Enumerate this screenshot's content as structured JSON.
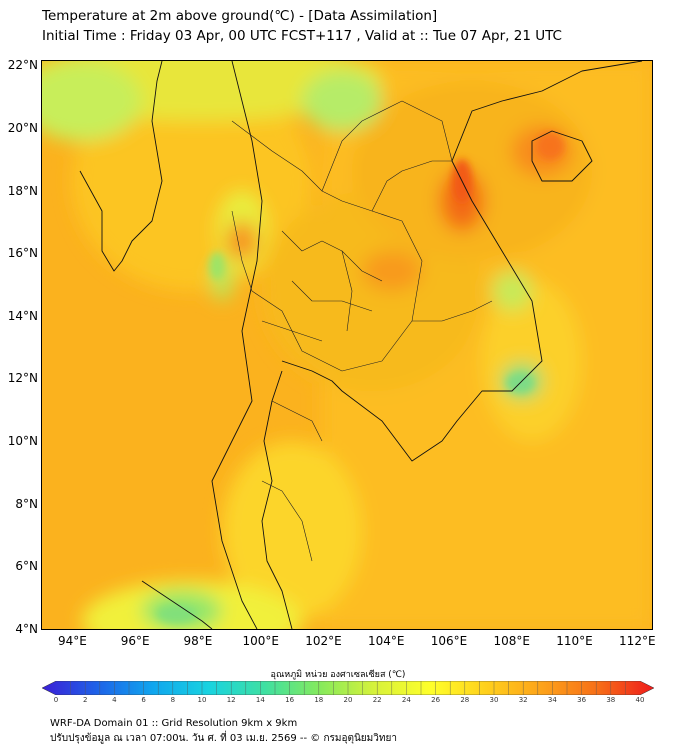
{
  "header": {
    "title": "Temperature at 2m above ground(℃) - [Data Assimilation]",
    "subtitle": "Initial Time : Friday 03 Apr, 00 UTC FCST+117 , Valid at :: Tue 07 Apr, 21 UTC"
  },
  "map": {
    "lat_ticks": [
      "22°N",
      "20°N",
      "18°N",
      "16°N",
      "14°N",
      "12°N",
      "10°N",
      "8°N",
      "6°N",
      "4°N"
    ],
    "lon_ticks": [
      "94°E",
      "96°E",
      "98°E",
      "100°E",
      "102°E",
      "104°E",
      "106°E",
      "108°E",
      "110°E",
      "112°E"
    ],
    "lat_range": [
      4,
      22.2
    ],
    "lon_range": [
      93,
      112.5
    ]
  },
  "colorbar": {
    "label": "อุณหภูมิ หน่วย องศาเซลเซียส (℃)",
    "ticks": [
      "0",
      "2",
      "4",
      "6",
      "8",
      "10",
      "12",
      "14",
      "16",
      "18",
      "20",
      "22",
      "24",
      "26",
      "28",
      "30",
      "32",
      "34",
      "36",
      "38",
      "40"
    ],
    "min": 0,
    "max": 40,
    "colors": [
      "#3b1fd6",
      "#1e63e8",
      "#10a6ee",
      "#19d3e0",
      "#3ee0a2",
      "#86ea5c",
      "#d8f23a",
      "#ffff2a",
      "#ffcf1c",
      "#fda21a",
      "#f76e18",
      "#ee1b1b"
    ]
  },
  "footer": {
    "line1": "WRF-DA Domain 01 :: Grid Resolution 9km x 9km",
    "line2": "ปรับปรุงข้อมูล ณ เวลา 07:00น. วัน ศ. ที่ 03 เม.ย. 2569 -- © กรมอุตุนิยมวิทยา"
  }
}
